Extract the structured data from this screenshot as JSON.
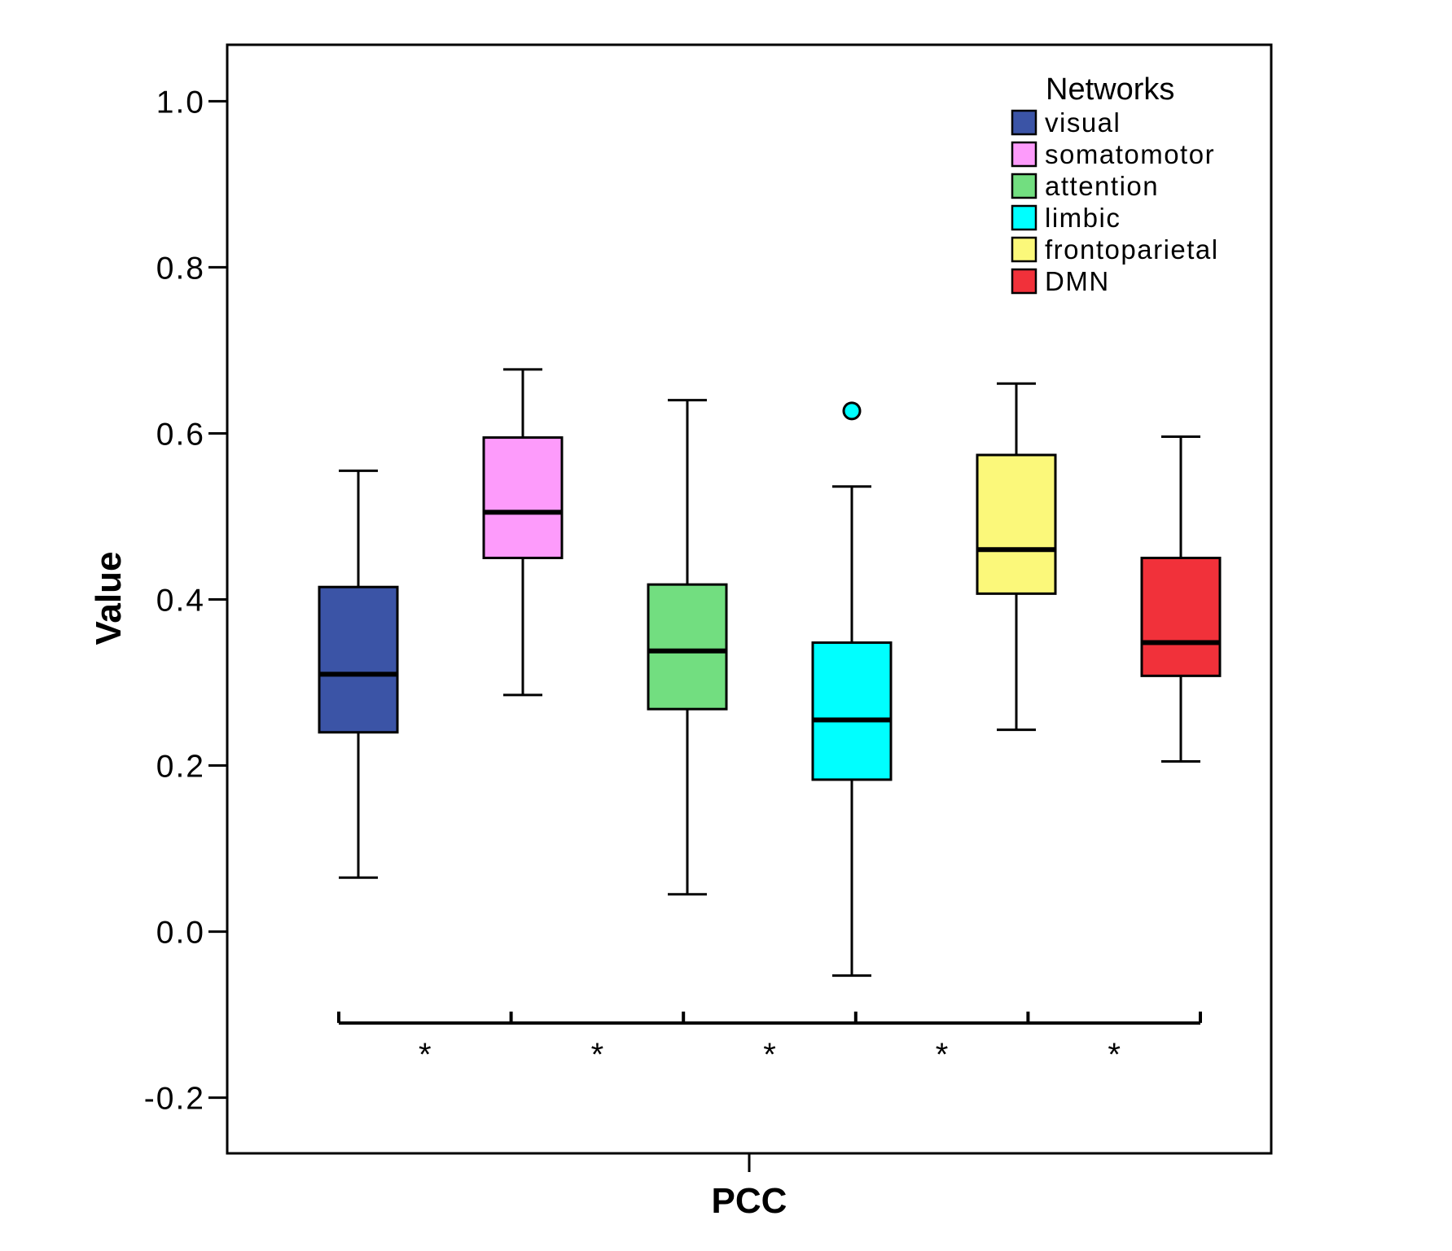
{
  "chart_data": {
    "type": "boxplot",
    "title": "",
    "xlabel": "PCC",
    "ylabel": "Value",
    "ylim": [
      -0.267,
      1.068
    ],
    "yticks": [
      -0.2,
      0.0,
      0.2,
      0.4,
      0.6,
      0.8,
      1.0
    ],
    "ytick_labels": [
      "-0.2",
      "0.0",
      "0.2",
      "0.4",
      "0.6",
      "0.8",
      "1.0"
    ],
    "categories": [
      "PCC"
    ],
    "legend": {
      "title": "Networks",
      "position": "top-right"
    },
    "series": [
      {
        "name": "visual",
        "color": "#3b54a6",
        "min": 0.065,
        "q1": 0.24,
        "median": 0.31,
        "q3": 0.415,
        "max": 0.555,
        "outliers": []
      },
      {
        "name": "somatomotor",
        "color": "#fd9bfb",
        "min": 0.285,
        "q1": 0.45,
        "median": 0.505,
        "q3": 0.595,
        "max": 0.677,
        "outliers": []
      },
      {
        "name": "attention",
        "color": "#72de80",
        "min": 0.045,
        "q1": 0.268,
        "median": 0.338,
        "q3": 0.418,
        "max": 0.64,
        "outliers": []
      },
      {
        "name": "limbic",
        "color": "#00ffff",
        "min": -0.053,
        "q1": 0.183,
        "median": 0.255,
        "q3": 0.348,
        "max": 0.536,
        "outliers": [
          0.627
        ]
      },
      {
        "name": "frontoparietal",
        "color": "#fbf87a",
        "min": 0.243,
        "q1": 0.407,
        "median": 0.46,
        "q3": 0.574,
        "max": 0.66,
        "outliers": []
      },
      {
        "name": "DMN",
        "color": "#f1313a",
        "min": 0.205,
        "q1": 0.308,
        "median": 0.348,
        "q3": 0.45,
        "max": 0.596,
        "outliers": []
      }
    ],
    "significance_brackets": [
      {
        "from": "visual",
        "to": "somatomotor",
        "label": "*"
      },
      {
        "from": "somatomotor",
        "to": "attention",
        "label": "*"
      },
      {
        "from": "attention",
        "to": "limbic",
        "label": "*"
      },
      {
        "from": "limbic",
        "to": "frontoparietal",
        "label": "*"
      },
      {
        "from": "frontoparietal",
        "to": "DMN",
        "label": "*"
      }
    ]
  }
}
